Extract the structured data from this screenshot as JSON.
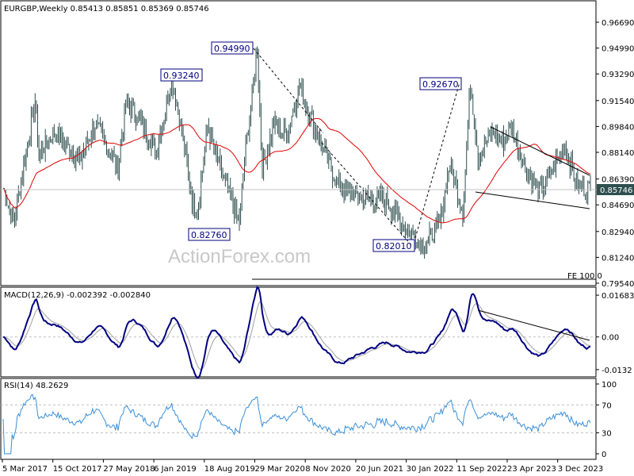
{
  "chart_data": [
    {
      "type": "line",
      "header": "EURGBP,Weekly  0.85413 0.85851 0.85369 0.85746",
      "yticks": [
        "0.96690",
        "0.94990",
        "0.93290",
        "0.91540",
        "0.89840",
        "0.88140",
        "0.86390",
        "0.84690",
        "0.82940",
        "0.81240",
        "0.79540"
      ],
      "ylim": [
        0.7954,
        0.9739
      ],
      "current_price_label": "0.85746",
      "current_price": 0.85746,
      "annotations": [
        "0.94990",
        "0.93240",
        "0.92670",
        "0.82760",
        "0.82010"
      ],
      "fe_label": "FE 100.0",
      "watermark": "ActionForex.com",
      "series": [
        {
          "style": "ohlc-bars",
          "color": "#2f4f4f"
        },
        {
          "style": "moving-average",
          "color": "#e00000"
        }
      ]
    },
    {
      "type": "line",
      "header": "MACD(12,26,9) -0.002392 -0.002840",
      "yticks": [
        "0.016838",
        "0.00",
        "-0.0132"
      ],
      "series": [
        {
          "name": "MACD",
          "color": "#000080"
        },
        {
          "name": "Signal",
          "color": "#a0a0a0"
        }
      ]
    },
    {
      "type": "line",
      "header": "RSI(14) 48.2629",
      "yticks": [
        "100",
        "70",
        "30",
        "0"
      ],
      "levels": [
        70,
        30
      ],
      "series": [
        {
          "name": "RSI",
          "color": "#3a8fd8"
        }
      ]
    }
  ],
  "xaxis_labels": [
    "5 Mar 2017",
    "15 Oct 2017",
    "27 May 2018",
    "6 Jan 2019",
    "18 Aug 2019",
    "29 Mar 2020",
    "8 Nov 2020",
    "20 Jun 2021",
    "30 Jan 2022",
    "11 Sep 2022",
    "23 Apr 2023",
    "3 Dec 2023"
  ]
}
